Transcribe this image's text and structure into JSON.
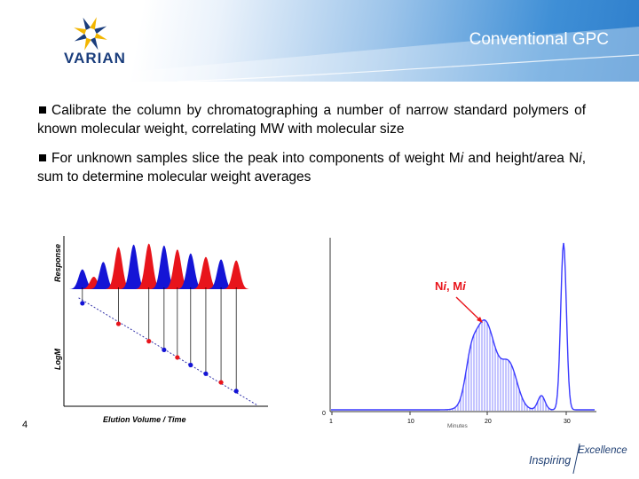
{
  "header": {
    "title": "Conventional GPC",
    "logo_text": "VARIAN",
    "logo_icon": "varian-starburst-logo"
  },
  "bullets": [
    {
      "text": "Calibrate the column by chromatographing a number of narrow standard polymers of known molecular weight, correlating MW with molecular size"
    },
    {
      "text_parts": [
        "For unknown samples slice the peak into components of weight M",
        "i",
        " and height/area N",
        "i",
        ", sum to determine molecular weight averages"
      ]
    }
  ],
  "footer": {
    "page_number": "4",
    "tagline_left": "Inspiring",
    "tagline_right": "Excellence"
  },
  "colors": {
    "red": "#e8141b",
    "blue": "#1414d6",
    "navy": "#1a3d7c",
    "trace": "#3a3aff"
  },
  "chart_data": [
    {
      "type": "line",
      "title": "",
      "ylabel_top": "Response",
      "ylabel_bottom": "LogM",
      "xlabel": "Elution Volume / Time",
      "note": "calibration standards: alternating red and blue narrow peaks; points on a descending LogM line",
      "peaks": [
        {
          "color": "blue",
          "x": 0.06,
          "h": 0.4
        },
        {
          "color": "red",
          "x": 0.12,
          "h": 0.25
        },
        {
          "color": "blue",
          "x": 0.17,
          "h": 0.55
        },
        {
          "color": "red",
          "x": 0.25,
          "h": 0.85
        },
        {
          "color": "blue",
          "x": 0.33,
          "h": 0.9
        },
        {
          "color": "red",
          "x": 0.41,
          "h": 0.92
        },
        {
          "color": "blue",
          "x": 0.49,
          "h": 0.88
        },
        {
          "color": "red",
          "x": 0.56,
          "h": 0.8
        },
        {
          "color": "blue",
          "x": 0.63,
          "h": 0.72
        },
        {
          "color": "red",
          "x": 0.71,
          "h": 0.65
        },
        {
          "color": "blue",
          "x": 0.79,
          "h": 0.6
        },
        {
          "color": "red",
          "x": 0.87,
          "h": 0.58
        }
      ],
      "calibration_points": [
        {
          "color": "blue",
          "x": 0.06
        },
        {
          "color": "red",
          "x": 0.25
        },
        {
          "color": "red",
          "x": 0.41
        },
        {
          "color": "blue",
          "x": 0.49
        },
        {
          "color": "red",
          "x": 0.56
        },
        {
          "color": "blue",
          "x": 0.63
        },
        {
          "color": "blue",
          "x": 0.71
        },
        {
          "color": "red",
          "x": 0.79
        },
        {
          "color": "blue",
          "x": 0.87
        }
      ]
    },
    {
      "type": "line",
      "title": "",
      "xlabel": "Minutes",
      "x_ticks": [
        "1",
        "10",
        "20",
        "30"
      ],
      "y_ticks": [
        "0"
      ],
      "annotation": "Ni, Mi",
      "annotation_parts": [
        "N",
        "i",
        ", M",
        "i"
      ],
      "note": "broad sample peak sliced into vertical strips, followed by a sharp system peak"
    }
  ]
}
